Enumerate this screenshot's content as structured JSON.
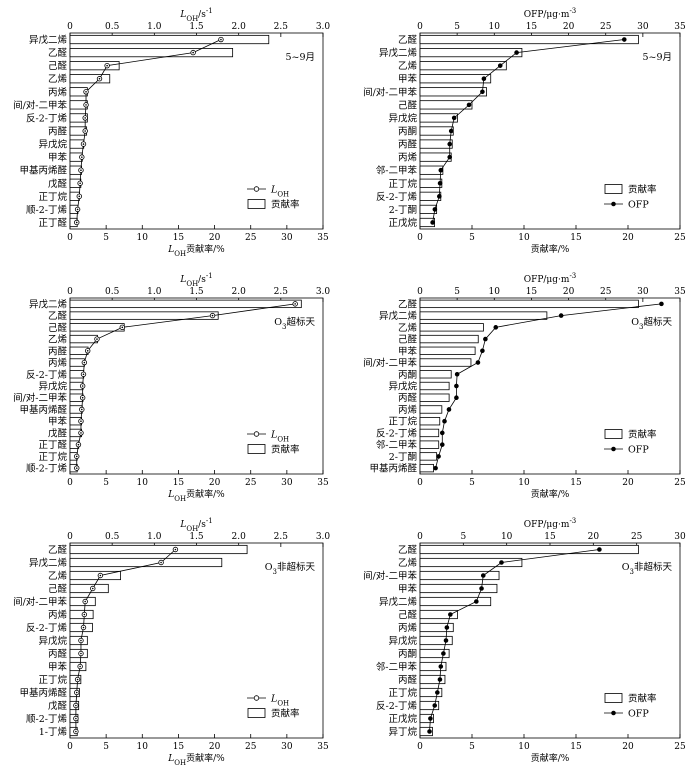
{
  "chart_data": [
    {
      "type": "bar",
      "panel": "a",
      "annotation": "5~9月",
      "x_top_label": "L-OH/s-1",
      "x_bottom_label": "L-OH贡献率/%",
      "x_top_ticks": [
        "0",
        "0.5",
        "1.0",
        "1.5",
        "2.0",
        "2.5",
        "3.0"
      ],
      "x_bottom_ticks": [
        "0",
        "5",
        "10",
        "15",
        "20",
        "25",
        "30",
        "35"
      ],
      "x_top_lim": [
        0,
        3.0
      ],
      "x_bottom_lim": [
        0,
        35
      ],
      "categories": [
        "异戊二烯",
        "乙醛",
        "己醛",
        "乙烯",
        "丙烯",
        "间/对-二甲苯",
        "反-2-丁烯",
        "丙醛",
        "异戊烷",
        "甲苯",
        "甲基丙烯醛",
        "戊醛",
        "正丁烷",
        "顺-2-丁烯",
        "正丁醛"
      ],
      "series": [
        {
          "name": "贡献率",
          "kind": "bar",
          "axis": "bottom",
          "values": [
            27.5,
            22.5,
            6.8,
            5.5,
            2.4,
            2.4,
            2.4,
            2.3,
            1.9,
            1.7,
            1.6,
            1.5,
            1.3,
            1.1,
            1.0
          ]
        },
        {
          "name": "L-OH",
          "kind": "line",
          "axis": "top",
          "values": [
            1.79,
            1.46,
            0.44,
            0.35,
            0.19,
            0.19,
            0.18,
            0.18,
            0.16,
            0.14,
            0.13,
            0.12,
            0.11,
            0.09,
            0.08
          ]
        }
      ],
      "legend": {
        "items": [
          "L-OH",
          "贡献率"
        ],
        "position": "lower-right"
      }
    },
    {
      "type": "bar",
      "panel": "b",
      "annotation": "5~9月",
      "x_top_label": "OFP/μg·m-3",
      "x_bottom_label": "贡献率/%",
      "x_top_ticks": [
        "0",
        "5",
        "10",
        "15",
        "20",
        "25",
        "30",
        "35"
      ],
      "x_bottom_ticks": [
        "0",
        "5",
        "10",
        "15",
        "20",
        "25"
      ],
      "x_top_lim": [
        0,
        35
      ],
      "x_bottom_lim": [
        0,
        25
      ],
      "categories": [
        "乙醛",
        "异戊二烯",
        "乙烯",
        "甲苯",
        "间/对-二甲苯",
        "己醛",
        "异戊烷",
        "丙酮",
        "丙醛",
        "丙烯",
        "邻-二甲苯",
        "正丁烷",
        "反-2-丁烯",
        "2-丁酮",
        "正戊烷"
      ],
      "series": [
        {
          "name": "贡献率",
          "kind": "bar",
          "axis": "bottom",
          "values": [
            21.0,
            9.8,
            8.3,
            6.8,
            6.4,
            5.0,
            3.6,
            3.2,
            3.1,
            3.0,
            2.2,
            2.1,
            2.0,
            1.6,
            1.4
          ]
        },
        {
          "name": "OFP",
          "kind": "line",
          "axis": "top",
          "values": [
            27.5,
            13.0,
            10.8,
            8.6,
            8.4,
            6.6,
            4.6,
            4.2,
            4.0,
            4.0,
            2.8,
            2.7,
            2.6,
            2.0,
            1.7
          ]
        }
      ],
      "legend": {
        "items": [
          "贡献率",
          "OFP"
        ],
        "position": "lower-right"
      }
    },
    {
      "type": "bar",
      "panel": "c",
      "annotation": "O3超标天",
      "x_top_label": "L-OH/s-1",
      "x_bottom_label": "L-OH贡献率/%",
      "x_top_ticks": [
        "0",
        "0.5",
        "1.0",
        "1.5",
        "2.0",
        "2.5",
        "3.0"
      ],
      "x_bottom_ticks": [
        "0",
        "5",
        "10",
        "15",
        "20",
        "25",
        "30",
        "35"
      ],
      "x_top_lim": [
        0,
        3.0
      ],
      "x_bottom_lim": [
        0,
        35
      ],
      "categories": [
        "异戊二烯",
        "乙醛",
        "己醛",
        "乙烯",
        "丙醛",
        "丙烯",
        "反-2-丁烯",
        "异戊烷",
        "间/对-二甲苯",
        "甲基丙烯醛",
        "甲苯",
        "戊醛",
        "正丁醛",
        "正丁烷",
        "顺-2-丁烯"
      ],
      "series": [
        {
          "name": "贡献率",
          "kind": "bar",
          "axis": "bottom",
          "values": [
            32.0,
            20.5,
            7.5,
            3.8,
            2.5,
            2.0,
            1.9,
            1.8,
            1.8,
            1.7,
            1.6,
            1.6,
            1.2,
            1.0,
            1.0
          ]
        },
        {
          "name": "L-OH",
          "kind": "line",
          "axis": "top",
          "values": [
            2.67,
            1.69,
            0.62,
            0.32,
            0.21,
            0.17,
            0.16,
            0.15,
            0.15,
            0.14,
            0.13,
            0.13,
            0.1,
            0.08,
            0.08
          ]
        }
      ],
      "legend": {
        "items": [
          "L-OH",
          "贡献率"
        ],
        "position": "lower-right"
      }
    },
    {
      "type": "bar",
      "panel": "d",
      "annotation": "O3超标天",
      "x_top_label": "OFP/μg·m-3",
      "x_bottom_label": "贡献率/%",
      "x_top_ticks": [
        "0",
        "5",
        "10",
        "15",
        "20",
        "25",
        "30",
        "35"
      ],
      "x_bottom_ticks": [
        "0",
        "5",
        "10",
        "15",
        "20",
        "25"
      ],
      "x_top_lim": [
        0,
        35
      ],
      "x_bottom_lim": [
        0,
        25
      ],
      "categories": [
        "乙醛",
        "异戊二烯",
        "乙烯",
        "己醛",
        "甲苯",
        "间/对-二甲苯",
        "丙酮",
        "异戊烷",
        "丙醛",
        "丙烯",
        "正丁烷",
        "反-2-丁烯",
        "邻-二甲苯",
        "2-丁酮",
        "甲基丙烯醛"
      ],
      "series": [
        {
          "name": "贡献率",
          "kind": "bar",
          "axis": "bottom",
          "values": [
            21.0,
            12.2,
            6.1,
            5.6,
            5.3,
            4.9,
            3.0,
            2.8,
            2.8,
            2.1,
            1.9,
            1.8,
            1.8,
            1.6,
            1.3
          ]
        },
        {
          "name": "OFP",
          "kind": "line",
          "axis": "top",
          "values": [
            32.5,
            19.0,
            10.2,
            8.8,
            8.4,
            7.8,
            5.0,
            4.9,
            4.9,
            3.9,
            3.3,
            3.0,
            3.0,
            2.5,
            2.1
          ]
        }
      ],
      "legend": {
        "items": [
          "贡献率",
          "OFP"
        ],
        "position": "lower-right"
      }
    },
    {
      "type": "bar",
      "panel": "e",
      "annotation": "O3非超标天",
      "x_top_label": "L-OH/s-1",
      "x_bottom_label": "L-OH贡献率/%",
      "x_top_ticks": [
        "0",
        "0.5",
        "1.0",
        "1.5",
        "2.0",
        "2.5",
        "3.0"
      ],
      "x_bottom_ticks": [
        "0",
        "5",
        "10",
        "15",
        "20",
        "25",
        "30",
        "35"
      ],
      "x_top_lim": [
        0,
        3.0
      ],
      "x_bottom_lim": [
        0,
        35
      ],
      "categories": [
        "乙醛",
        "异戊二烯",
        "乙烯",
        "己醛",
        "间/对-二甲苯",
        "丙烯",
        "反-2-丁烯",
        "异戊烷",
        "丙醛",
        "甲苯",
        "正丁烷",
        "甲基丙烯醛",
        "戊醛",
        "顺-2-丁烯",
        "1-丁烯"
      ],
      "series": [
        {
          "name": "贡献率",
          "kind": "bar",
          "axis": "bottom",
          "values": [
            24.5,
            21.0,
            7.0,
            5.3,
            3.5,
            3.2,
            3.1,
            2.4,
            2.4,
            2.2,
            1.5,
            1.3,
            1.2,
            1.1,
            1.0
          ]
        },
        {
          "name": "L-OH",
          "kind": "line",
          "axis": "top",
          "values": [
            1.25,
            1.08,
            0.36,
            0.27,
            0.18,
            0.17,
            0.16,
            0.13,
            0.13,
            0.12,
            0.09,
            0.08,
            0.07,
            0.07,
            0.07
          ]
        }
      ],
      "legend": {
        "items": [
          "L-OH",
          "贡献率"
        ],
        "position": "lower-right"
      }
    },
    {
      "type": "bar",
      "panel": "f",
      "annotation": "O3非超标天",
      "x_top_label": "OFP/μg·m-3",
      "x_bottom_label": "贡献率/%",
      "x_top_ticks": [
        "0",
        "5",
        "10",
        "15",
        "20",
        "25",
        "30"
      ],
      "x_bottom_ticks": [
        "0",
        "5",
        "10",
        "15",
        "20",
        "25"
      ],
      "x_top_lim": [
        0,
        30
      ],
      "x_bottom_lim": [
        0,
        25
      ],
      "categories": [
        "乙醛",
        "乙烯",
        "间/对-二甲苯",
        "甲苯",
        "异戊二烯",
        "己醛",
        "丙烯",
        "异戊烷",
        "丙酮",
        "邻-二甲苯",
        "丙醛",
        "正丁烷",
        "反-2-丁烯",
        "正戊烷",
        "异丁烷"
      ],
      "series": [
        {
          "name": "贡献率",
          "kind": "bar",
          "axis": "bottom",
          "values": [
            21.0,
            9.8,
            7.6,
            7.4,
            6.8,
            3.6,
            3.2,
            3.1,
            2.8,
            2.5,
            2.4,
            2.1,
            1.8,
            1.3,
            1.2
          ]
        },
        {
          "name": "OFP",
          "kind": "line",
          "axis": "top",
          "values": [
            20.7,
            9.4,
            7.3,
            7.1,
            6.5,
            3.5,
            3.1,
            3.0,
            2.7,
            2.4,
            2.3,
            2.0,
            1.7,
            1.2,
            1.1
          ]
        }
      ],
      "legend": {
        "items": [
          "贡献率",
          "OFP"
        ],
        "position": "lower-right"
      }
    }
  ]
}
